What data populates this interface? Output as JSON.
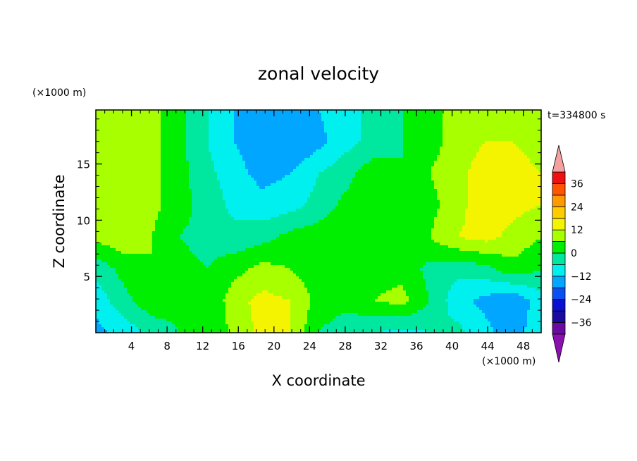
{
  "chart_data": {
    "type": "heatmap",
    "title": "zonal velocity",
    "xlabel": "X coordinate",
    "ylabel": "Z coordinate",
    "x_unit": "(×1000 m)",
    "y_unit": "(×1000 m)",
    "time_label": "t=334800 s",
    "xlim": [
      0,
      50
    ],
    "ylim": [
      0,
      19.8
    ],
    "x_ticks": [
      4,
      8,
      12,
      16,
      20,
      24,
      28,
      32,
      36,
      40,
      44,
      48
    ],
    "y_ticks": [
      5,
      10,
      15
    ],
    "colorbar": {
      "levels": [
        -42,
        -36,
        -30,
        -24,
        -18,
        -12,
        -6,
        0,
        6,
        12,
        18,
        24,
        30,
        36,
        42
      ],
      "tick_values": [
        -36,
        -24,
        -12,
        0,
        12,
        24,
        36
      ],
      "tick_labels": [
        "−36",
        "−24",
        "−12",
        "0",
        "12",
        "24",
        "36"
      ],
      "colors": [
        "#6a0aa0",
        "#1a0aa0",
        "#0a10d0",
        "#0a50f0",
        "#00a6ff",
        "#00f0f0",
        "#00e8a0",
        "#00ee00",
        "#a8ff00",
        "#f4f400",
        "#ffcc00",
        "#ff9900",
        "#ff5500",
        "#ee1111"
      ],
      "under_color": "#8a10b0",
      "over_color": "#f4a0a0"
    },
    "z_estimate": [
      [
        -14,
        -10,
        -4,
        0,
        0,
        8,
        14,
        12,
        0,
        -4,
        -6,
        -8,
        -6,
        -4,
        -10,
        -16,
        -6
      ],
      [
        -10,
        -2,
        4,
        2,
        0,
        10,
        14,
        12,
        4,
        2,
        6,
        8,
        0,
        -10,
        -14,
        -18,
        -8
      ],
      [
        -4,
        2,
        6,
        2,
        0,
        4,
        8,
        6,
        2,
        0,
        4,
        4,
        -2,
        -4,
        -2,
        4,
        0
      ],
      [
        8,
        10,
        6,
        0,
        -2,
        -4,
        -2,
        2,
        4,
        6,
        4,
        0,
        6,
        12,
        14,
        10,
        6
      ],
      [
        10,
        12,
        8,
        2,
        -2,
        -8,
        -10,
        -8,
        -4,
        2,
        2,
        0,
        4,
        10,
        16,
        14,
        12
      ],
      [
        8,
        10,
        8,
        2,
        -4,
        -10,
        -14,
        -12,
        -6,
        -2,
        4,
        0,
        6,
        10,
        16,
        14,
        12
      ],
      [
        6,
        8,
        8,
        2,
        -6,
        -12,
        -16,
        -18,
        -14,
        -8,
        -4,
        0,
        4,
        8,
        12,
        12,
        10
      ],
      [
        6,
        8,
        8,
        2,
        -6,
        -12,
        -14,
        -14,
        -12,
        -8,
        -4,
        0,
        4,
        8,
        10,
        8,
        6
      ]
    ]
  }
}
